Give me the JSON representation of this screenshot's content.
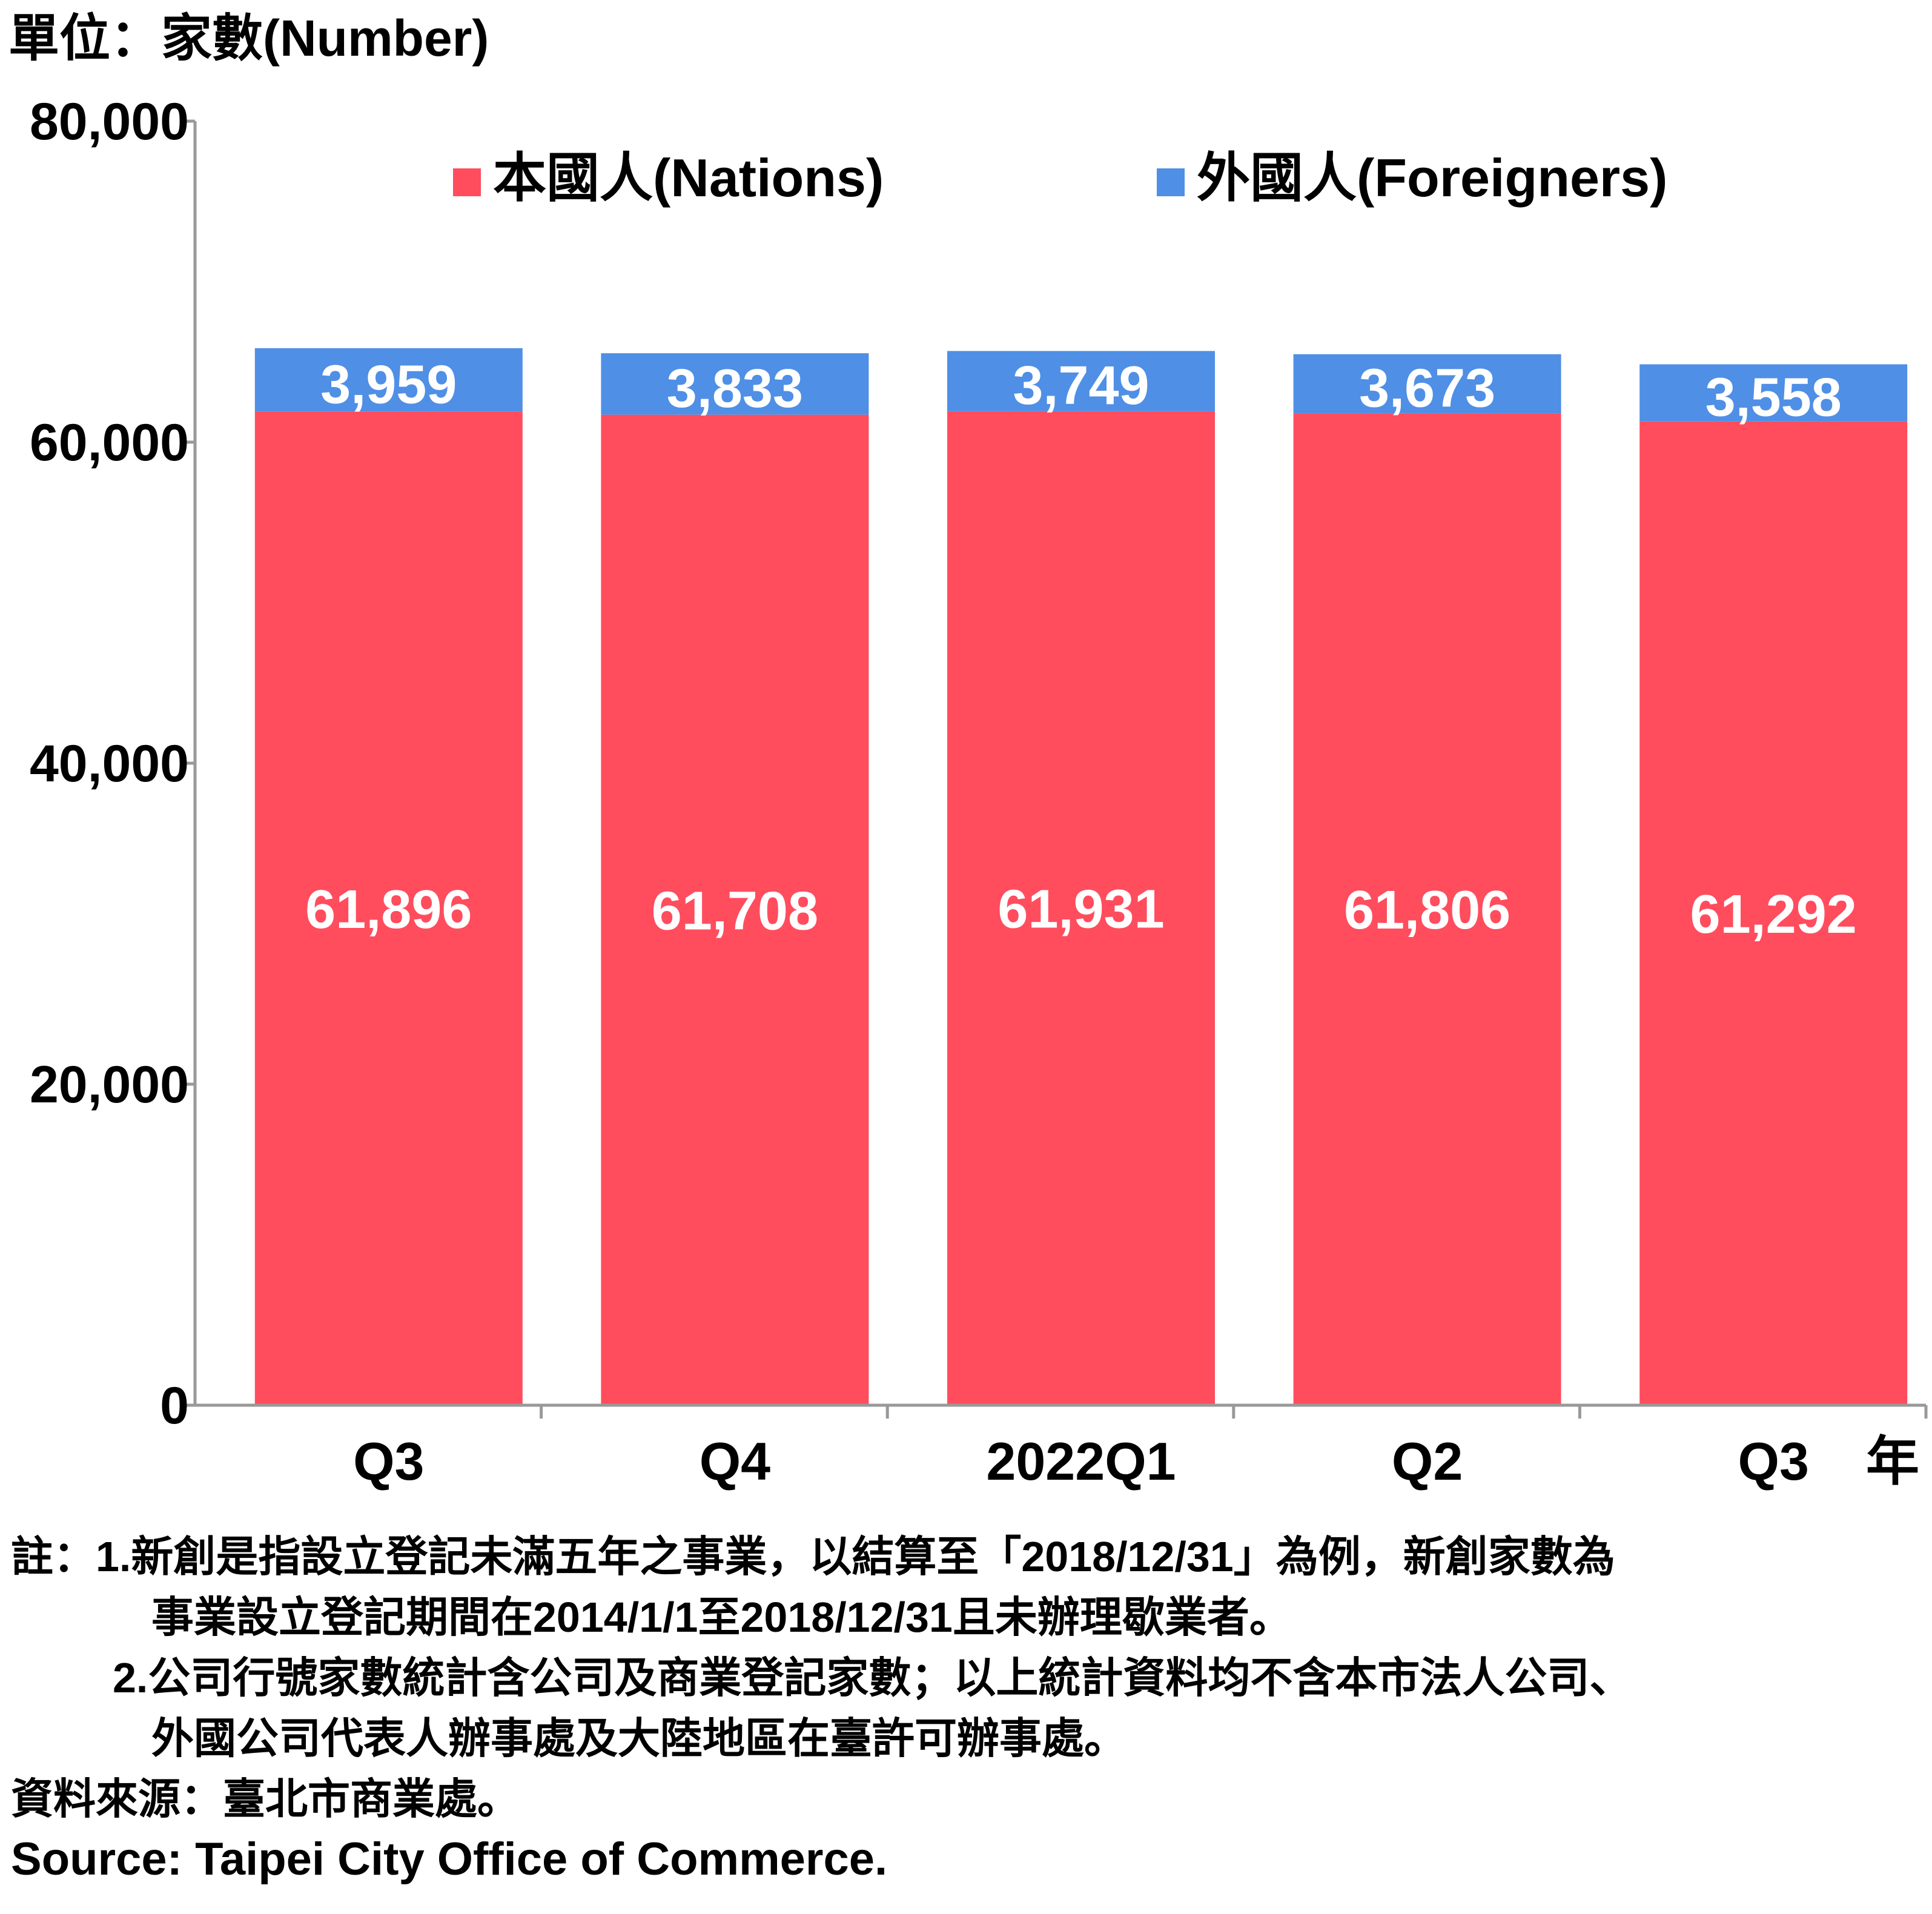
{
  "chart_data": {
    "type": "stacked-bar",
    "unit_label": "單位：家數(Number)",
    "x_axis_suffix": "年",
    "categories": [
      "Q3",
      "Q4",
      "2022Q1",
      "Q2",
      "Q3"
    ],
    "series": [
      {
        "name": "本國人(Nations)",
        "color": "#FF4D5E",
        "values": [
          61896,
          61708,
          61931,
          61806,
          61292
        ]
      },
      {
        "name": "外國人(Foreigners)",
        "color": "#4F8FE6",
        "values": [
          3959,
          3833,
          3749,
          3673,
          3558
        ]
      }
    ],
    "value_labels": [
      [
        "61,896",
        "61,708",
        "61,931",
        "61,806",
        "61,292"
      ],
      [
        "3,959",
        "3,833",
        "3,749",
        "3,673",
        "3,558"
      ]
    ],
    "ylim": [
      0,
      80000
    ],
    "yticks": [
      0,
      20000,
      40000,
      60000,
      80000
    ],
    "ytick_labels": [
      "0",
      "20,000",
      "40,000",
      "60,000",
      "80,000"
    ],
    "grid": false,
    "legend_position": "top"
  },
  "notes": {
    "note1_line1": "註：1.新創是指設立登記未滿五年之事業，以結算至「2018/12/31」為例，新創家數為",
    "note1_line2": "事業設立登記期間在2014/1/1至2018/12/31且未辦理歇業者。",
    "note2_line1": "2.公司行號家數統計含公司及商業登記家數；以上統計資料均不含本市法人公司、",
    "note2_line2": "外國公司代表人辦事處及大陸地區在臺許可辦事處。",
    "source_zh": "資料來源：臺北市商業處。",
    "source_en": "Source: Taipei City Office of Commerce."
  }
}
